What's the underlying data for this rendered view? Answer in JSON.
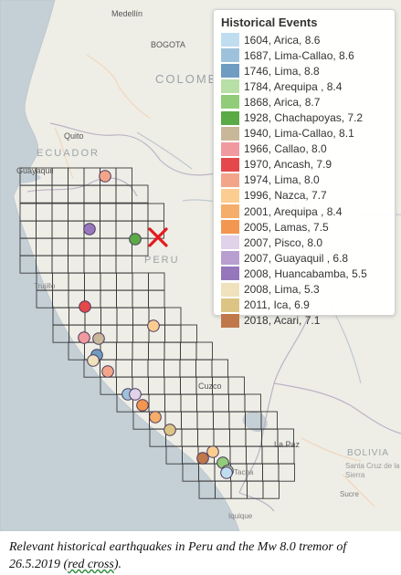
{
  "map": {
    "place_labels": {
      "medellin": "Medellín",
      "bogota": "BOGOTA",
      "colombia": "COLOMB",
      "quito": "Quito",
      "ecuador": "ECUADOR",
      "guayaquil": "Guayaquil",
      "peru": "PERU",
      "trujillo": "Trujillo",
      "cuzco": "Cuzco",
      "la_paz": "La Paz",
      "bolivia": "BOLIVIA",
      "santa_cruz": "Santa Cruz de la Sierra",
      "sucre": "Sucre",
      "tacna": "Tacna",
      "iquique": "Iquique"
    },
    "events": [
      {
        "legend_index": 9
      },
      {
        "legend_index": 15
      },
      {
        "legend_index": 5
      },
      {
        "legend_index": 10
      },
      {
        "legend_index": 8
      },
      {
        "legend_index": 7
      },
      {
        "legend_index": 6
      },
      {
        "legend_index": 2
      },
      {
        "legend_index": 16
      },
      {
        "legend_index": 9
      },
      {
        "legend_index": 1
      },
      {
        "legend_index": 13
      },
      {
        "legend_index": 12
      },
      {
        "legend_index": 11
      },
      {
        "legend_index": 17
      },
      {
        "legend_index": 18
      },
      {
        "legend_index": 10
      },
      {
        "legend_index": 4
      },
      {
        "legend_index": 3
      },
      {
        "legend_index": 0
      },
      {
        "legend_index": 14
      }
    ],
    "epicenter_2019": {
      "marker": "red-cross",
      "color": "#e41a1c"
    }
  },
  "legend": {
    "title": "Historical Events",
    "items": [
      {
        "label": "1604, Arica, 8.6",
        "color": "#c0ddf0"
      },
      {
        "label": "1687, Lima-Callao, 8.6",
        "color": "#9fc2dc"
      },
      {
        "label": "1746, Lima, 8.8",
        "color": "#6f9cc1"
      },
      {
        "label": "1784, Arequipa , 8.4",
        "color": "#b8dfa6"
      },
      {
        "label": "1868, Arica, 8.7",
        "color": "#91cc79"
      },
      {
        "label": "1928, Chachapoyas, 7.2",
        "color": "#5aaa46"
      },
      {
        "label": "1940, Lima-Callao, 8.1",
        "color": "#c9b79a"
      },
      {
        "label": "1966, Callao, 8.0",
        "color": "#f09aa0"
      },
      {
        "label": "1970, Ancash, 7.9",
        "color": "#e4484a"
      },
      {
        "label": "1974, Lima, 8.0",
        "color": "#f3a58a"
      },
      {
        "label": "1996, Nazca, 7.7",
        "color": "#fbcd90"
      },
      {
        "label": "2001, Arequipa , 8.4",
        "color": "#f5ad6a"
      },
      {
        "label": "2005, Lamas, 7.5",
        "color": "#f39650"
      },
      {
        "label": "2007, Pisco, 8.0",
        "color": "#e0d2e8"
      },
      {
        "label": "2007, Guayaquil , 6.8",
        "color": "#b89fd0"
      },
      {
        "label": "2008, Huancabamba, 5.5",
        "color": "#9677bb"
      },
      {
        "label": "2008, Lima, 5.3",
        "color": "#efe2bc"
      },
      {
        "label": "2011, Ica, 6.9",
        "color": "#dcc485"
      },
      {
        "label": "2018, Acari, 7.1",
        "color": "#c0784a"
      }
    ]
  },
  "caption": {
    "text_main": "Relevant historical earthquakes in Peru and the Mw 8.0 tremor of 26.5.2019 (",
    "text_underlined": "red cross",
    "text_end": ")."
  }
}
